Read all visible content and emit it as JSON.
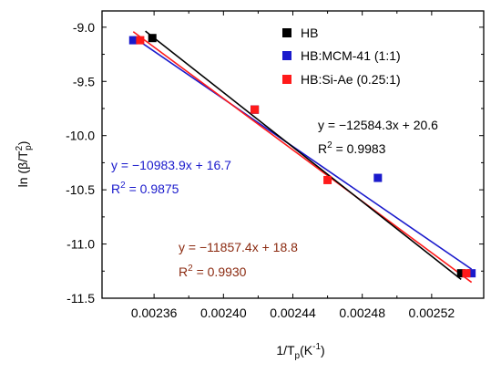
{
  "chart_data": {
    "type": "scatter",
    "xlabel_main": "1/T",
    "xlabel_sub": "p",
    "xlabel_unit_open": "(K",
    "xlabel_unit_sup": "-1",
    "xlabel_unit_close": ")",
    "ylabel_main": "ln (β/T",
    "ylabel_sup": "2",
    "ylabel_sub": "p",
    "ylabel_close": ")",
    "xlim": [
      0.00233,
      0.00255
    ],
    "ylim": [
      -11.5,
      -8.85
    ],
    "xticks": [
      0.00236,
      0.0024,
      0.00244,
      0.00248,
      0.00252
    ],
    "xtick_labels": [
      "0.00236",
      "0.00240",
      "0.00244",
      "0.00248",
      "0.00252"
    ],
    "yticks": [
      -9.0,
      -9.5,
      -10.0,
      -10.5,
      -11.0,
      -11.5
    ],
    "ytick_labels": [
      "-9.0",
      "-9.5",
      "-10.0",
      "-10.5",
      "-11.0",
      "-11.5"
    ],
    "grid": false,
    "legend_position": "top-right",
    "series": [
      {
        "name": "HB",
        "color": "#000000",
        "marker": "square",
        "points": [
          {
            "x": 0.002359,
            "y": -9.1
          },
          {
            "x": 0.002418,
            "y": -9.76
          },
          {
            "x": 0.002537,
            "y": -11.27
          }
        ],
        "fit": {
          "slope": -12584.3,
          "intercept": 20.6,
          "equation": "y = −12584.3x + 20.6",
          "r2_label": "R",
          "r2_value": " = 0.9983",
          "x_range": [
            0.002355,
            0.002537
          ]
        }
      },
      {
        "name": "HB:MCM-41 (1:1)",
        "color": "#1a1acc",
        "marker": "square",
        "points": [
          {
            "x": 0.002348,
            "y": -9.12
          },
          {
            "x": 0.002418,
            "y": -9.76
          },
          {
            "x": 0.002489,
            "y": -10.39
          },
          {
            "x": 0.002543,
            "y": -11.27
          }
        ],
        "fit": {
          "slope": -10983.9,
          "intercept": 16.7,
          "equation": "y = −10983.9x + 16.7",
          "r2_label": "R",
          "r2_value": " = 0.9875",
          "x_range": [
            0.002348,
            0.002543
          ]
        }
      },
      {
        "name": "HB:Si-Ae (0.25:1)",
        "color": "#ff1a1a",
        "marker": "square",
        "points": [
          {
            "x": 0.002352,
            "y": -9.12
          },
          {
            "x": 0.002418,
            "y": -9.76
          },
          {
            "x": 0.00246,
            "y": -10.41
          },
          {
            "x": 0.00254,
            "y": -11.27
          }
        ],
        "fit": {
          "slope": -11857.4,
          "intercept": 18.8,
          "equation": "y = −11857.4x + 18.8",
          "r2_label": "R",
          "r2_value": " = 0.9930",
          "x_range": [
            0.002348,
            0.002543
          ]
        }
      }
    ],
    "annotation_colors": {
      "HB": "#000000",
      "HB:MCM-41 (1:1)": "#1a1acc",
      "HB:Si-Ae (0.25:1)": "#8b2a10"
    }
  }
}
